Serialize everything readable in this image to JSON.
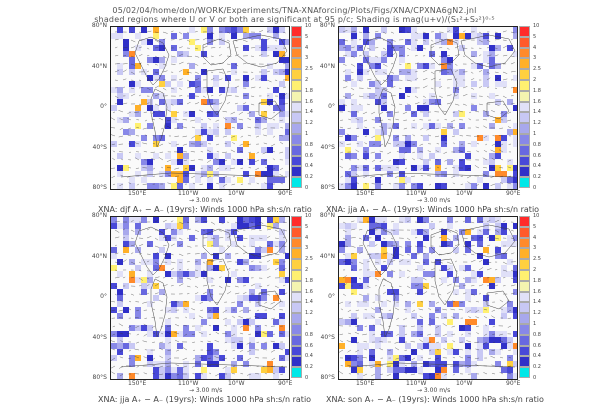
{
  "header": {
    "line1": "05/02/04/home/don/WORK/Experiments/TNA-XNAforcing/Plots/Figs/XNA/CPXNA6gN2.jnl",
    "line2": "shaded regions where U or V or both are significant at 95 p/c; Shading is mag(u+v)/(S₁²+S₂²)⁰·⁵"
  },
  "common": {
    "lat_ticks": [
      "80°N",
      "40°N",
      "0°",
      "40°S",
      "80°S"
    ],
    "lon_ticks": [
      "150°E",
      "110°W",
      "10°W",
      "90°E"
    ],
    "colorbar_labels": [
      "10",
      "5",
      "4",
      "3",
      "2.5",
      "2",
      "1.8",
      "1.6",
      "1.4",
      "1.2",
      "1",
      "0.8",
      "0.6",
      "0.4",
      "0.2",
      "0"
    ],
    "colorbar_colors": [
      "#ff2a2a",
      "#ff5a2a",
      "#ff8a2a",
      "#ffb028",
      "#ffd040",
      "#fff070",
      "#f4f4b0",
      "#e0e0f8",
      "#c8c8f4",
      "#a8a8ec",
      "#8888e8",
      "#6868e0",
      "#4848d8",
      "#3030c8",
      "#00e8e8"
    ],
    "scale_label": "3.00 m/s"
  },
  "chart_data": [
    {
      "type": "heatmap",
      "caption": "XNA: djf A₊ − A₋ (19yrs): Winds 1000 hPa sh:s/n ratio"
    },
    {
      "type": "heatmap",
      "caption": "XNA: jja A₊ − A₋ (19yrs): Winds 1000 hPa sh:s/n ratio"
    },
    {
      "type": "heatmap",
      "caption": "XNA: jja A₊ − A₋ (19yrs): Winds 1000 hPa sh:s/n ratio"
    },
    {
      "type": "heatmap",
      "caption": "XNA: son A₊ − A₋ (19yrs): Winds 1000 hPa sh:s/n ratio"
    }
  ]
}
